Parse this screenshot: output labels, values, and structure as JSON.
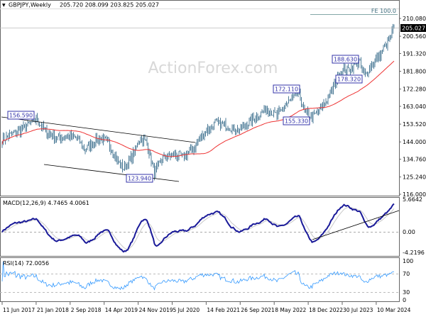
{
  "header": {
    "symbol": "GBPJPY,Weekly",
    "ohlc": "205.720 208.099 203.825 205.027"
  },
  "watermark": "ActionForex.com",
  "colors": {
    "bars": "#4f7d98",
    "ma": "#ee3333",
    "macd": "#1a1a99",
    "signal": "#c8c8c8",
    "rsi": "#3399ff",
    "label_border": "#3333aa"
  },
  "chart_data": [
    {
      "type": "line",
      "title": "GBPJPY Weekly price bars with moving average",
      "ylim": [
        116.0,
        210.08
      ],
      "y_ticks": [
        "210.080",
        "200.560",
        "191.320",
        "181.800",
        "172.280",
        "163.040",
        "153.520",
        "144.000",
        "134.760",
        "125.240",
        "116.000"
      ],
      "current_price": "205.027",
      "x_ticks": [
        "11 Jun 2017",
        "21 Jan 2018",
        "2 Sep 2018",
        "14 Apr 2019",
        "24 Nov 2019",
        "5 Jul 2020",
        "14 Feb 2021",
        "26 Sep 2021",
        "8 May 2022",
        "18 Dec 2022",
        "30 Jul 2023",
        "10 Mar 2024"
      ],
      "price_keypoints_week_close": [
        [
          0,
          145
        ],
        [
          12,
          149
        ],
        [
          22,
          152
        ],
        [
          32,
          156.2
        ],
        [
          40,
          150
        ],
        [
          50,
          146
        ],
        [
          60,
          147
        ],
        [
          70,
          146
        ],
        [
          78,
          140
        ],
        [
          82,
          142
        ],
        [
          92,
          146
        ],
        [
          100,
          143
        ],
        [
          108,
          134
        ],
        [
          114,
          130
        ],
        [
          122,
          136
        ],
        [
          130,
          146.5
        ],
        [
          136,
          143
        ],
        [
          143,
          127
        ],
        [
          150,
          135
        ],
        [
          160,
          137
        ],
        [
          170,
          136
        ],
        [
          180,
          141
        ],
        [
          190,
          149
        ],
        [
          200,
          154
        ],
        [
          210,
          153
        ],
        [
          222,
          150
        ],
        [
          235,
          156
        ],
        [
          248,
          162
        ],
        [
          258,
          158
        ],
        [
          270,
          166
        ],
        [
          278,
          170
        ],
        [
          284,
          160
        ],
        [
          291,
          157
        ],
        [
          300,
          162
        ],
        [
          310,
          172
        ],
        [
          318,
          182
        ],
        [
          325,
          183
        ],
        [
          335,
          187
        ],
        [
          340,
          179.5
        ],
        [
          348,
          186
        ],
        [
          355,
          191
        ],
        [
          362,
          197
        ],
        [
          368,
          205.03
        ]
      ],
      "annotations": [
        {
          "text": "156.590",
          "type": "high"
        },
        {
          "text": "123.940",
          "type": "low"
        },
        {
          "text": "172.110",
          "type": "high"
        },
        {
          "text": "155.330",
          "type": "low"
        },
        {
          "text": "188.630",
          "type": "high"
        },
        {
          "text": "178.320",
          "type": "low"
        },
        {
          "text": "FE 100.0",
          "type": "fibonacci-extension",
          "value": 210.4
        }
      ]
    },
    {
      "type": "line",
      "title": "MACD(12,26,9) 4.7465 4.0061",
      "y_ticks": [
        "5.6642",
        "0.00",
        "-4.2196"
      ],
      "series": [
        {
          "name": "MACD",
          "last": 4.7465
        },
        {
          "name": "Signal",
          "last": 4.0061
        }
      ]
    },
    {
      "type": "line",
      "title": "RSI(14) 72.0056",
      "y_ticks": [
        "100",
        "70",
        "30",
        "0"
      ],
      "series": [
        {
          "name": "RSI(14)",
          "last": 72.0056
        }
      ]
    }
  ]
}
